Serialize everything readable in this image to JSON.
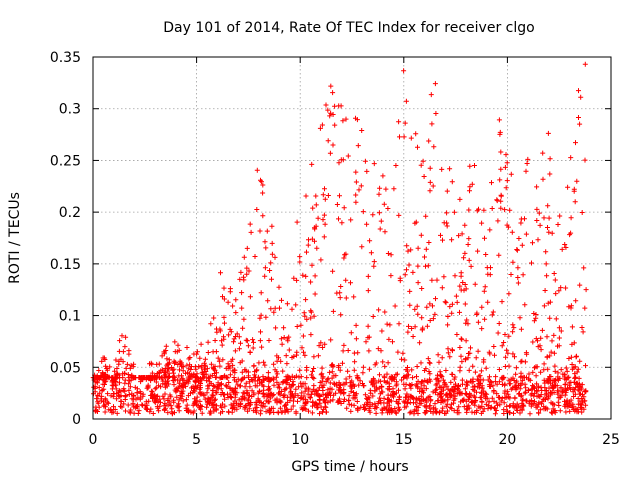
{
  "chart_data": {
    "type": "scatter",
    "title": "Day 101 of 2014, Rate Of TEC Index for receiver clgo",
    "xlabel": "GPS time / hours",
    "ylabel": "ROTI / TECUs",
    "xlim": [
      0,
      25
    ],
    "ylim": [
      0,
      0.35
    ],
    "xticks": [
      0,
      5,
      10,
      15,
      20,
      25
    ],
    "yticks": [
      0,
      0.05,
      0.1,
      0.15,
      0.2,
      0.25,
      0.3,
      0.35
    ],
    "grid": true,
    "marker": "+",
    "color": "#ff0000",
    "x_range_observed": [
      0.0,
      23.8
    ],
    "envelope": {
      "x": [
        0.0,
        0.5,
        1.0,
        1.5,
        2.0,
        2.5,
        3.0,
        3.5,
        4.0,
        4.5,
        5.0,
        5.5,
        6.0,
        6.5,
        7.0,
        7.5,
        8.0,
        8.5,
        9.0,
        9.5,
        10.0,
        10.5,
        11.0,
        11.5,
        12.0,
        12.5,
        13.0,
        13.5,
        14.0,
        14.5,
        15.0,
        15.5,
        16.0,
        16.5,
        17.0,
        17.5,
        18.0,
        18.5,
        19.0,
        19.5,
        20.0,
        20.5,
        21.0,
        21.5,
        22.0,
        22.5,
        23.0,
        23.5,
        23.8
      ],
      "upper": [
        0.04,
        0.06,
        0.05,
        0.1,
        0.05,
        0.05,
        0.06,
        0.07,
        0.08,
        0.07,
        0.07,
        0.08,
        0.16,
        0.12,
        0.18,
        0.2,
        0.25,
        0.21,
        0.14,
        0.16,
        0.25,
        0.24,
        0.3,
        0.33,
        0.31,
        0.34,
        0.3,
        0.27,
        0.25,
        0.3,
        0.35,
        0.28,
        0.27,
        0.34,
        0.26,
        0.22,
        0.23,
        0.29,
        0.22,
        0.3,
        0.28,
        0.2,
        0.29,
        0.25,
        0.28,
        0.2,
        0.25,
        0.35,
        0.35
      ],
      "baseline_band": [
        0.005,
        0.04
      ]
    }
  }
}
